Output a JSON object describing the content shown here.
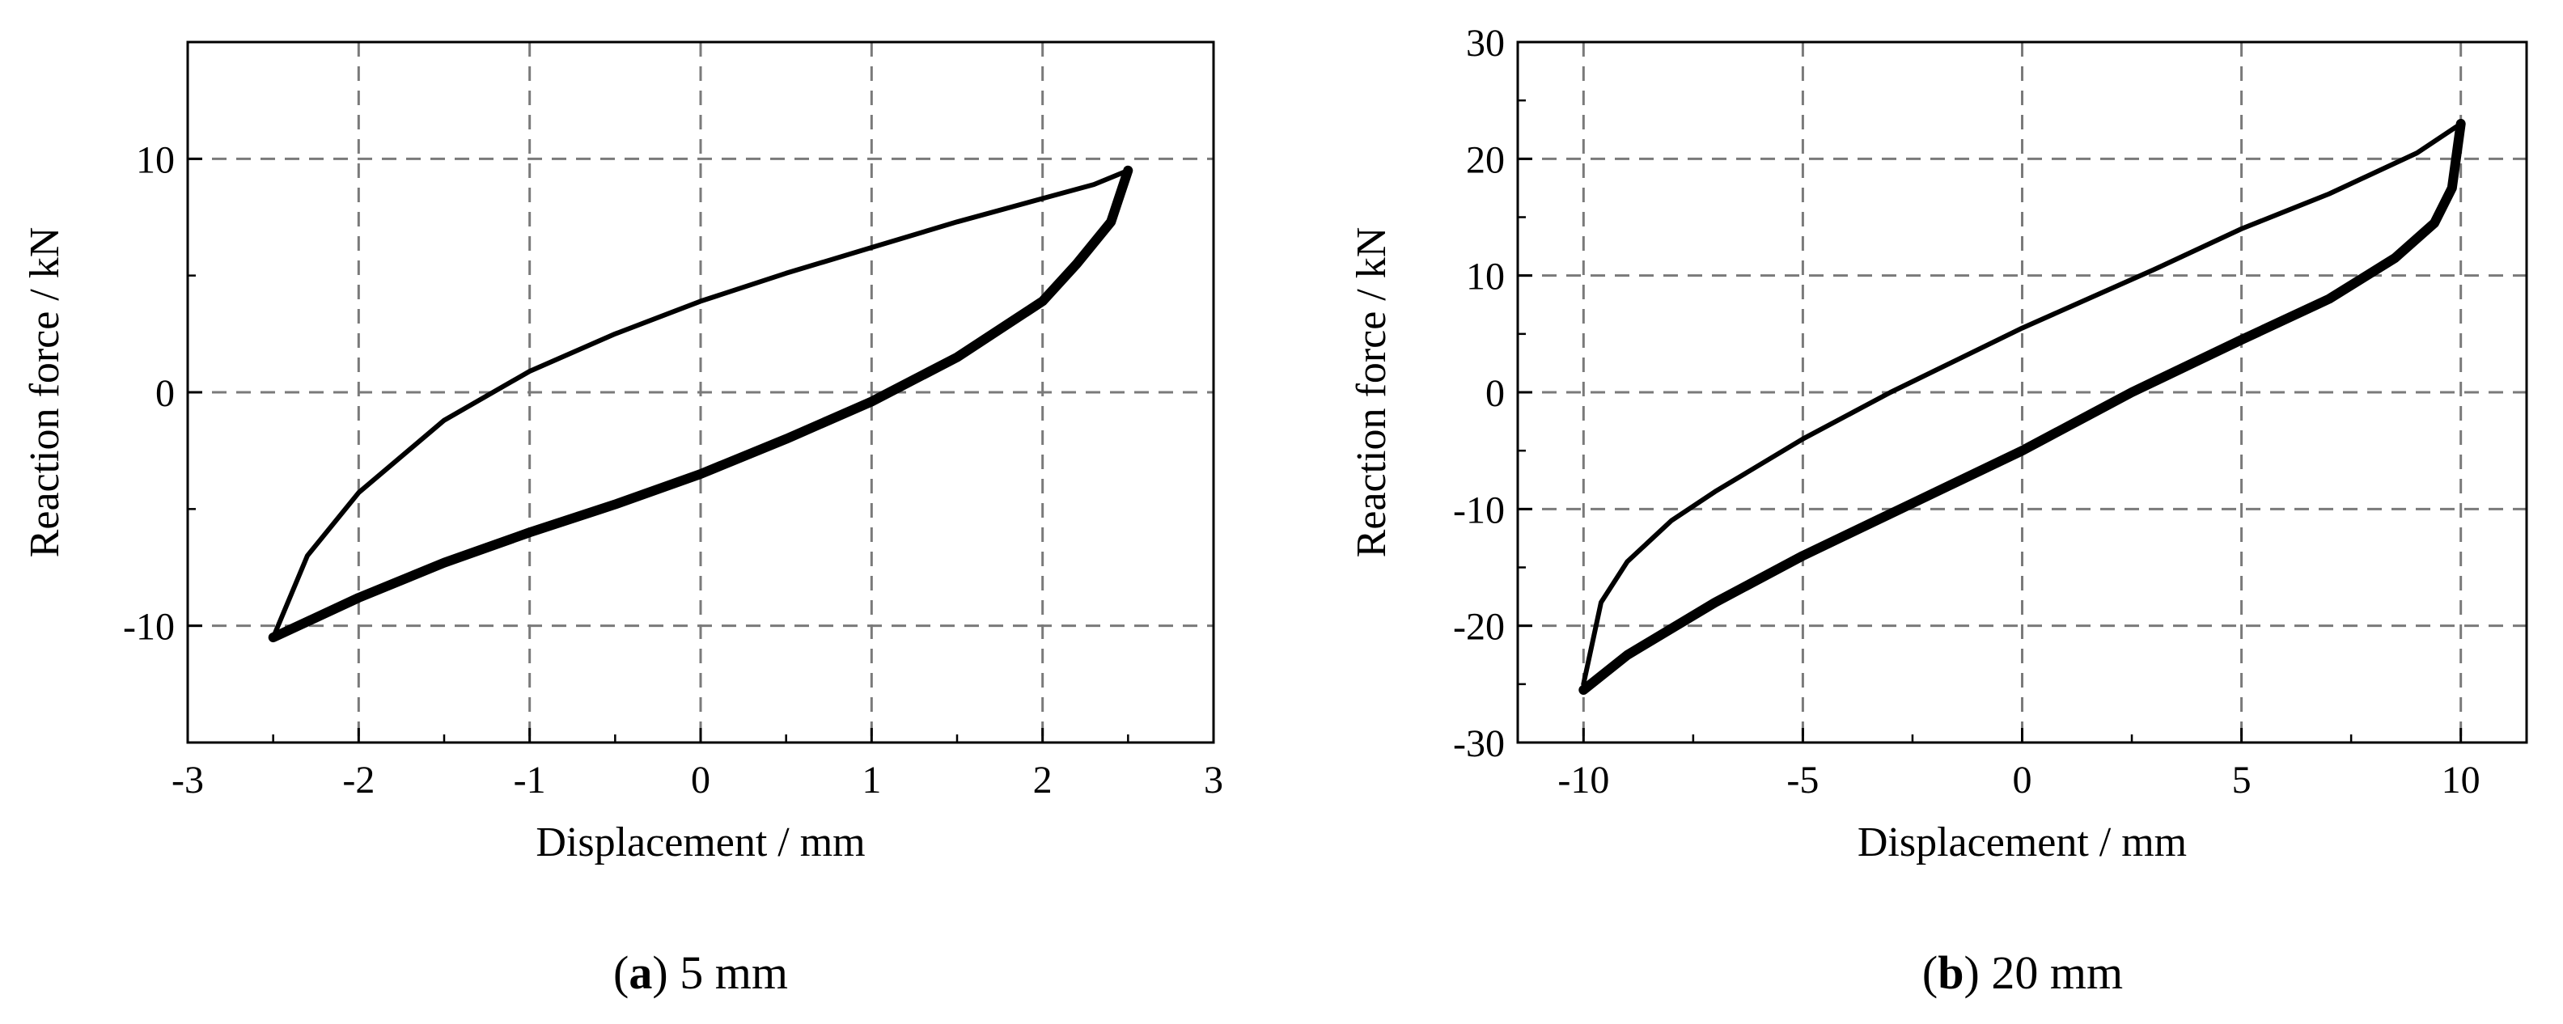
{
  "chart_data": [
    {
      "type": "line",
      "caption": {
        "open": "(",
        "letter": "a",
        "close": ")",
        "text": " 5 mm"
      },
      "xlabel": "Displacement / mm",
      "ylabel": "Reaction force / kN",
      "xlim": [
        -3,
        3
      ],
      "ylim": [
        -15,
        15
      ],
      "xticks": [
        -3,
        -2,
        -1,
        0,
        1,
        2,
        3
      ],
      "yticks": [
        -10,
        0,
        10
      ],
      "grid": true,
      "line_color": "#000000",
      "series": [
        {
          "x": [
            -2.5,
            -2.3,
            -2.0,
            -1.5,
            -1.0,
            -0.5,
            0.0,
            0.5,
            1.0,
            1.5,
            2.0,
            2.3,
            2.5
          ],
          "y": [
            -10.5,
            -7.0,
            -4.3,
            -1.2,
            0.9,
            2.5,
            3.9,
            5.1,
            6.2,
            7.3,
            8.3,
            8.9,
            9.5
          ]
        },
        {
          "x": [
            2.5,
            2.4,
            2.2,
            2.0,
            1.5,
            1.0,
            0.5,
            0.0,
            -0.5,
            -1.0,
            -1.5,
            -2.0,
            -2.5
          ],
          "y": [
            9.5,
            7.3,
            5.5,
            3.9,
            1.5,
            -0.4,
            -2.0,
            -3.5,
            -4.8,
            -6.0,
            -7.3,
            -8.8,
            -10.5
          ]
        }
      ]
    },
    {
      "type": "line",
      "caption": {
        "open": "(",
        "letter": "b",
        "close": ")",
        "text": " 20 mm"
      },
      "xlabel": "Displacement / mm",
      "ylabel": "Reaction force / kN",
      "xlim": [
        -11.5,
        11.5
      ],
      "ylim": [
        -30,
        30
      ],
      "xticks": [
        -10,
        -5,
        0,
        5,
        10
      ],
      "yticks": [
        -30,
        -20,
        -10,
        0,
        10,
        20,
        30
      ],
      "grid": true,
      "line_color": "#000000",
      "series": [
        {
          "x": [
            -10,
            -9.6,
            -9.0,
            -8.0,
            -7.0,
            -5.0,
            -3.0,
            0.0,
            3.0,
            5.0,
            7.0,
            9.0,
            10.0
          ],
          "y": [
            -25.0,
            -18.0,
            -14.5,
            -11.0,
            -8.5,
            -4.0,
            0.0,
            5.5,
            10.5,
            14.0,
            17.0,
            20.5,
            23.0
          ]
        },
        {
          "x": [
            10,
            9.8,
            9.4,
            8.5,
            7.0,
            5.0,
            2.5,
            0.0,
            -2.5,
            -5.0,
            -7.0,
            -9.0,
            -10.0
          ],
          "y": [
            23.0,
            17.5,
            14.5,
            11.5,
            8.0,
            4.5,
            0.0,
            -5.0,
            -9.5,
            -14.0,
            -18.0,
            -22.5,
            -25.5
          ]
        }
      ]
    }
  ]
}
